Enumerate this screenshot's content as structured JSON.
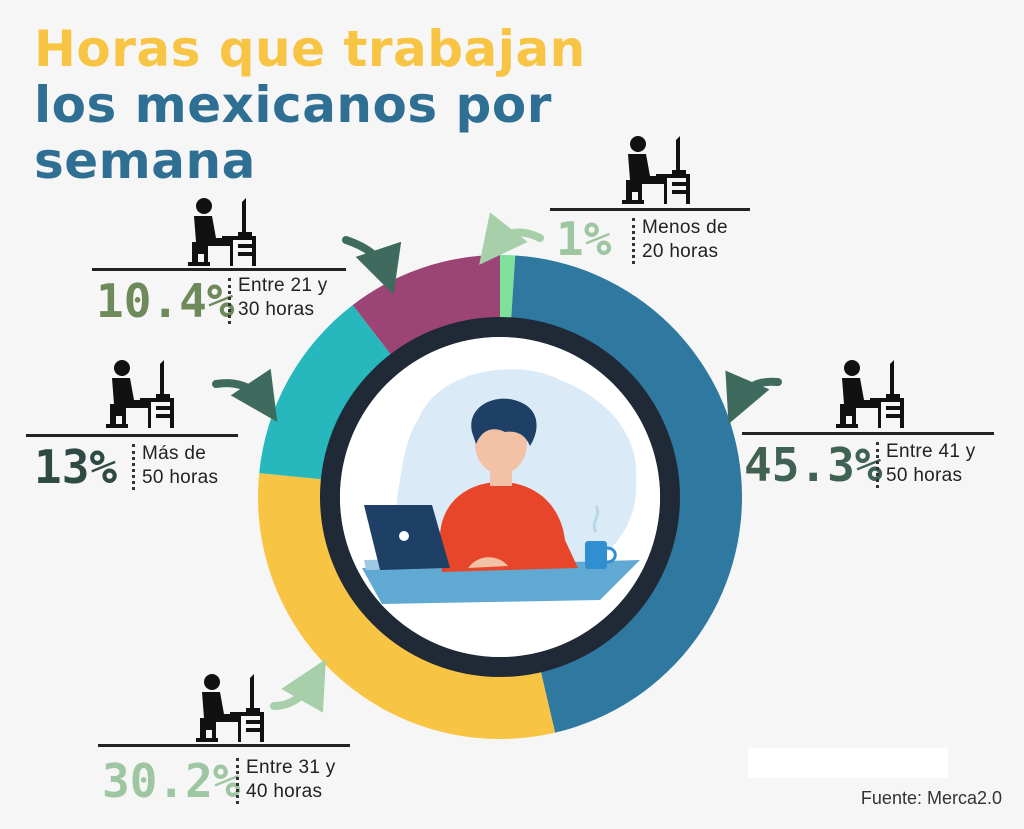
{
  "title": {
    "line1": "Horas que trabajan",
    "line2": "los mexicanos por",
    "line3": "semana"
  },
  "chart_data": {
    "type": "pie",
    "title": "Horas que trabajan los mexicanos por semana",
    "series": [
      {
        "name": "Menos de 20 horas",
        "pct_label": "1%",
        "label_line1": "Menos de",
        "label_line2": "20 horas",
        "value": 1,
        "color": "#7fe09a",
        "pct_color": "#9ec6a2"
      },
      {
        "name": "Entre 41 y 50 horas",
        "pct_label": "45.3%",
        "label_line1": "Entre 41 y",
        "label_line2": "50 horas",
        "value": 45.3,
        "color": "#2f789f",
        "pct_color": "#3f6253"
      },
      {
        "name": "Entre 31 y 40 horas",
        "pct_label": "30.2%",
        "label_line1": "Entre 31 y",
        "label_line2": "40 horas",
        "value": 30.2,
        "color": "#f8c443",
        "pct_color": "#9ec6a2"
      },
      {
        "name": "Más de 50 horas",
        "pct_label": "13%",
        "label_line1": "Más de",
        "label_line2": "50 horas",
        "value": 13,
        "color": "#26b8bd",
        "pct_color": "#2f4a44"
      },
      {
        "name": "Entre 21 y 30 horas",
        "pct_label": "10.4%",
        "label_line1": "Entre 21 y",
        "label_line2": "30 horas",
        "value": 10.4,
        "color": "#9c4476",
        "pct_color": "#6f8a5a"
      }
    ]
  },
  "colors": {
    "ring_inner_border": "#202a36",
    "arrow_dark": "#3f6b5f",
    "arrow_light": "#a7cfa9"
  },
  "source": "Fuente: Merca2.0"
}
